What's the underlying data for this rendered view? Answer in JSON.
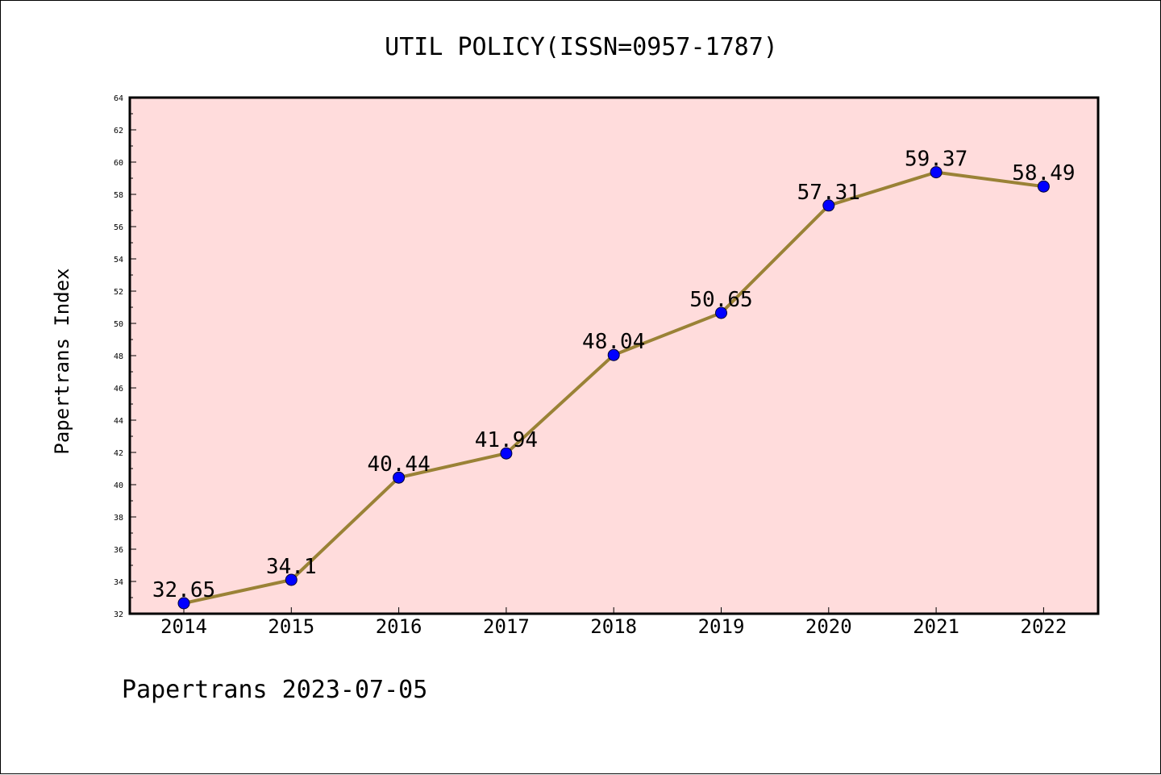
{
  "chart_data": {
    "type": "line",
    "title": "UTIL POLICY(ISSN=0957-1787)",
    "xlabel": "",
    "ylabel": "Papertrans Index",
    "categories": [
      "2014",
      "2015",
      "2016",
      "2017",
      "2018",
      "2019",
      "2020",
      "2021",
      "2022"
    ],
    "series": [
      {
        "values": [
          32.65,
          34.1,
          40.44,
          41.94,
          48.04,
          50.65,
          57.31,
          59.37,
          58.49
        ],
        "data_labels": [
          "32.65",
          "34.1",
          "40.44",
          "41.94",
          "48.04",
          "50.65",
          "57.31",
          "59.37",
          "58.49"
        ],
        "line_color": "#9a8236",
        "marker_color": "#0000ff"
      }
    ],
    "ylim": [
      32,
      64
    ],
    "yticks": [
      "32",
      "34",
      "36",
      "38",
      "40",
      "42",
      "44",
      "46",
      "48",
      "50",
      "52",
      "54",
      "56",
      "58",
      "60",
      "62",
      "64"
    ],
    "plot_background": "#ffdcdc",
    "grid": false,
    "legend": "none"
  },
  "footer": {
    "text": "Papertrans 2023-07-05"
  }
}
